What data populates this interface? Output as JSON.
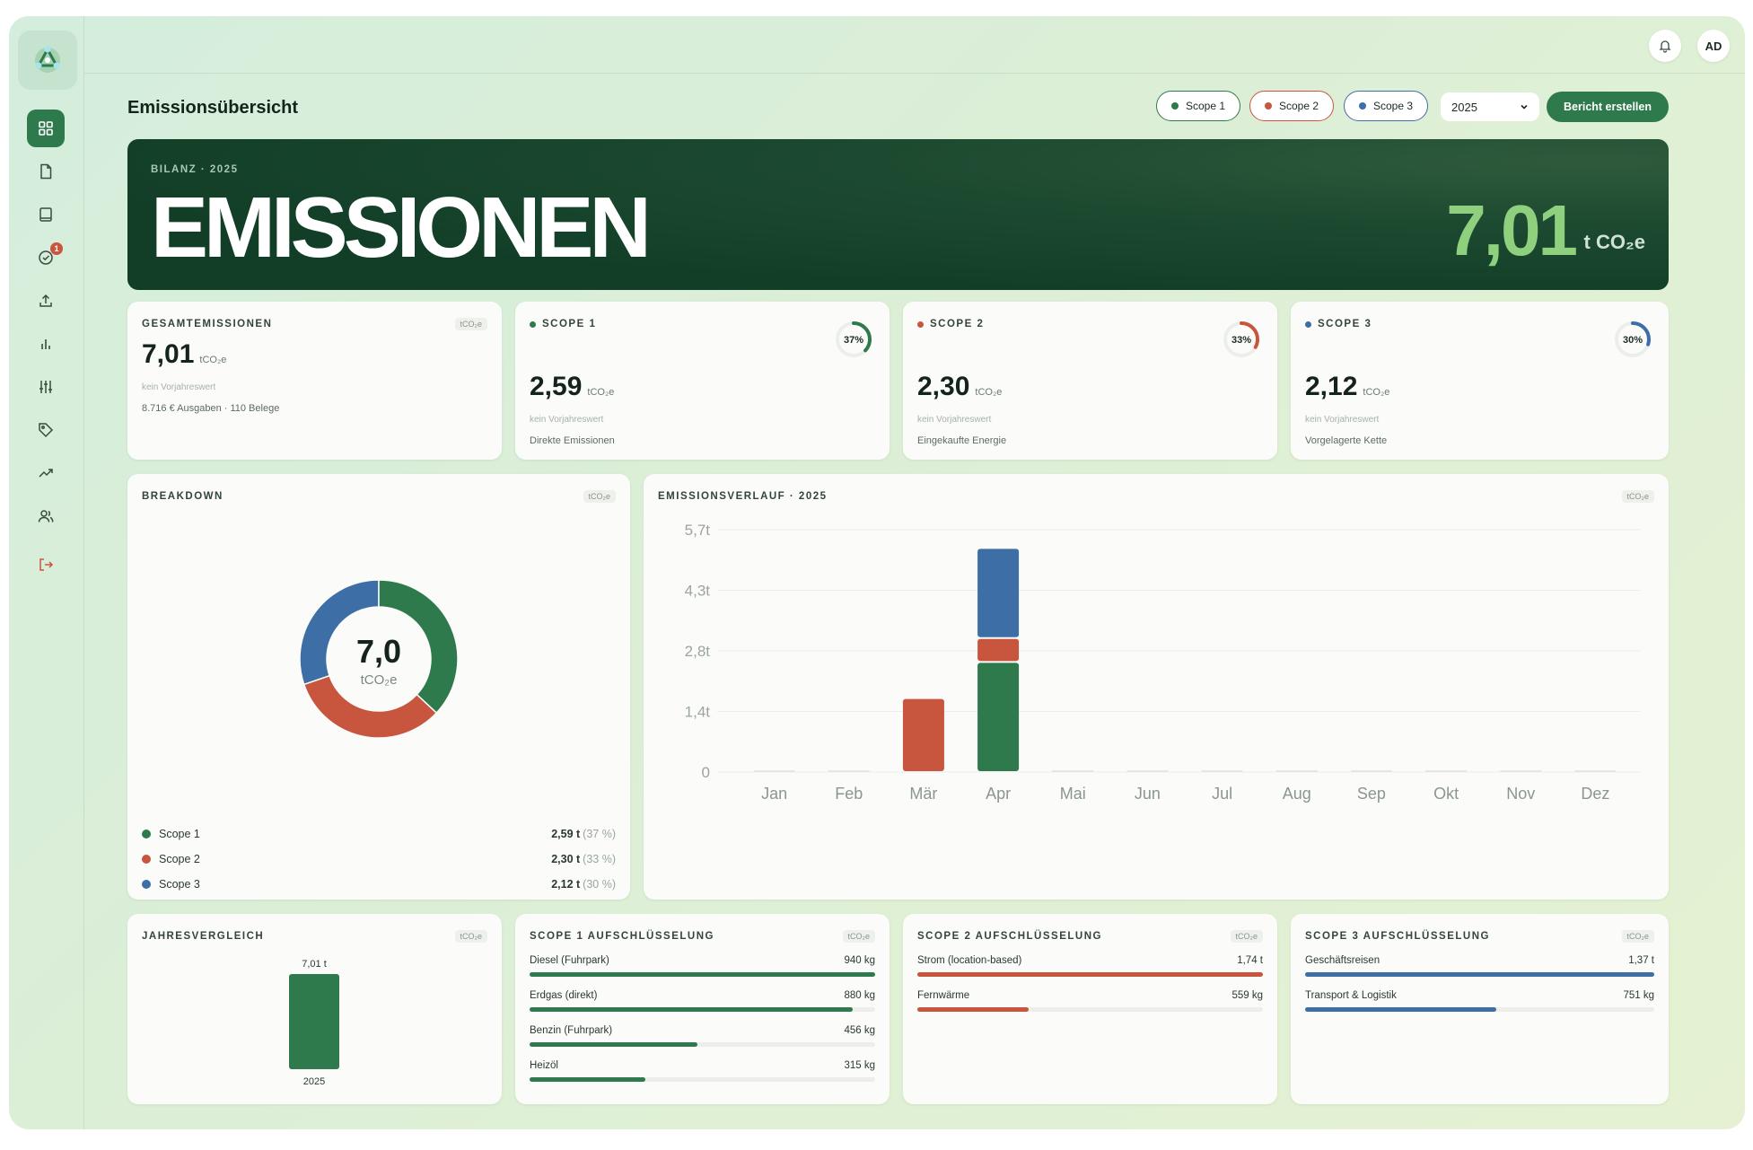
{
  "header": {
    "title": "Emissionsübersicht",
    "filters": [
      {
        "label": "Scope 1",
        "color": "#2e7a4d"
      },
      {
        "label": "Scope 2",
        "color": "#c8553d"
      },
      {
        "label": "Scope 3",
        "color": "#3d6ea5"
      }
    ],
    "year": "2025",
    "report_button": "Bericht erstellen",
    "avatar": "AD",
    "notification_icon": "bell-icon"
  },
  "sidebar": {
    "items": [
      {
        "icon": "grid-icon",
        "active": true
      },
      {
        "icon": "file-icon"
      },
      {
        "icon": "book-icon"
      },
      {
        "icon": "check-circle-icon",
        "badge": "1"
      },
      {
        "icon": "upload-icon"
      },
      {
        "icon": "bar-chart-icon"
      },
      {
        "icon": "sliders-icon"
      },
      {
        "icon": "tag-icon"
      },
      {
        "icon": "trending-icon"
      },
      {
        "icon": "users-icon"
      },
      {
        "icon": "logout-icon"
      }
    ]
  },
  "hero": {
    "label": "BILANZ · 2025",
    "title": "EMISSIONEN",
    "value": "7,01",
    "unit": "t CO₂e"
  },
  "kpis": [
    {
      "label": "GESAMTEMISSIONEN",
      "value": "7,01",
      "unit": "tCO₂e",
      "sub": "kein Vorjahreswert",
      "desc": "8.716 € Ausgaben · 110 Belege",
      "tag": "tCO₂e"
    },
    {
      "label": "SCOPE 1",
      "value": "2,59",
      "unit": "tCO₂e",
      "sub": "kein Vorjahreswert",
      "desc": "Direkte Emissionen",
      "percent": "37%",
      "fraction": 0.37,
      "color": "#2e7a4d"
    },
    {
      "label": "SCOPE 2",
      "value": "2,30",
      "unit": "tCO₂e",
      "sub": "kein Vorjahreswert",
      "desc": "Eingekaufte Energie",
      "percent": "33%",
      "fraction": 0.33,
      "color": "#c8553d"
    },
    {
      "label": "SCOPE 3",
      "value": "2,12",
      "unit": "tCO₂e",
      "sub": "kein Vorjahreswert",
      "desc": "Vorgelagerte Kette",
      "percent": "30%",
      "fraction": 0.3,
      "color": "#3d6ea5"
    }
  ],
  "breakdown": {
    "label": "BREAKDOWN",
    "tag": "tCO₂e",
    "center_value": "7,0",
    "center_unit": "tCO₂e",
    "legend": [
      {
        "name": "Scope 1",
        "value": "2,59 t",
        "pct": "(37 %)"
      },
      {
        "name": "Scope 2",
        "value": "2,30 t",
        "pct": "(33 %)"
      },
      {
        "name": "Scope 3",
        "value": "2,12 t",
        "pct": "(30 %)"
      }
    ]
  },
  "timeline": {
    "label": "EMISSIONSVERLAUF · 2025",
    "tag": "tCO₂e"
  },
  "yearly": {
    "label": "JAHRESVERGLEICH",
    "tag": "tCO₂e",
    "bar_label": "7,01 t",
    "year": "2025"
  },
  "scope_breakdowns": [
    {
      "label": "SCOPE 1 AUFSCHLÜSSELUNG",
      "tag": "tCO₂e",
      "color": "#2e7a4d",
      "rows": [
        {
          "name": "Diesel (Fuhrpark)",
          "value": "940 kg",
          "fraction": 1.0
        },
        {
          "name": "Erdgas (direkt)",
          "value": "880 kg",
          "fraction": 0.936
        },
        {
          "name": "Benzin (Fuhrpark)",
          "value": "456 kg",
          "fraction": 0.485
        },
        {
          "name": "Heizöl",
          "value": "315 kg",
          "fraction": 0.335
        }
      ]
    },
    {
      "label": "SCOPE 2 AUFSCHLÜSSELUNG",
      "tag": "tCO₂e",
      "color": "#c8553d",
      "rows": [
        {
          "name": "Strom (location-based)",
          "value": "1,74 t",
          "fraction": 1.0
        },
        {
          "name": "Fernwärme",
          "value": "559 kg",
          "fraction": 0.321
        }
      ]
    },
    {
      "label": "SCOPE 3 AUFSCHLÜSSELUNG",
      "tag": "tCO₂e",
      "color": "#3d6ea5",
      "rows": [
        {
          "name": "Geschäftsreisen",
          "value": "1,37 t",
          "fraction": 1.0
        },
        {
          "name": "Transport & Logistik",
          "value": "751 kg",
          "fraction": 0.548
        }
      ]
    }
  ],
  "chart_data": [
    {
      "type": "pie",
      "categories": [
        "Scope 1",
        "Scope 2",
        "Scope 3"
      ],
      "values": [
        2.59,
        2.3,
        2.12
      ],
      "colors": [
        "#2e7a4d",
        "#c8553d",
        "#3d6ea5"
      ]
    },
    {
      "type": "bar",
      "stacked": true,
      "categories": [
        "Jan",
        "Feb",
        "Mär",
        "Apr",
        "Mai",
        "Jun",
        "Jul",
        "Aug",
        "Sep",
        "Okt",
        "Nov",
        "Dez"
      ],
      "series": [
        {
          "name": "Scope 1",
          "color": "#2e7a4d",
          "values": [
            0,
            0,
            0,
            2.59,
            0,
            0,
            0,
            0,
            0,
            0,
            0,
            0
          ]
        },
        {
          "name": "Scope 2",
          "color": "#c8553d",
          "values": [
            0,
            0,
            1.74,
            0.56,
            0,
            0,
            0,
            0,
            0,
            0,
            0,
            0
          ]
        },
        {
          "name": "Scope 3",
          "color": "#3d6ea5",
          "values": [
            0,
            0,
            0,
            2.12,
            0,
            0,
            0,
            0,
            0,
            0,
            0,
            0
          ]
        }
      ],
      "yticks": [
        "0",
        "1,4t",
        "2,8t",
        "4,3t",
        "5,7t"
      ],
      "ylim": [
        0,
        5.7
      ],
      "grid": true
    },
    {
      "type": "bar",
      "categories": [
        "2025"
      ],
      "values": [
        7.01
      ],
      "colors": [
        "#2e7a4d"
      ]
    }
  ]
}
